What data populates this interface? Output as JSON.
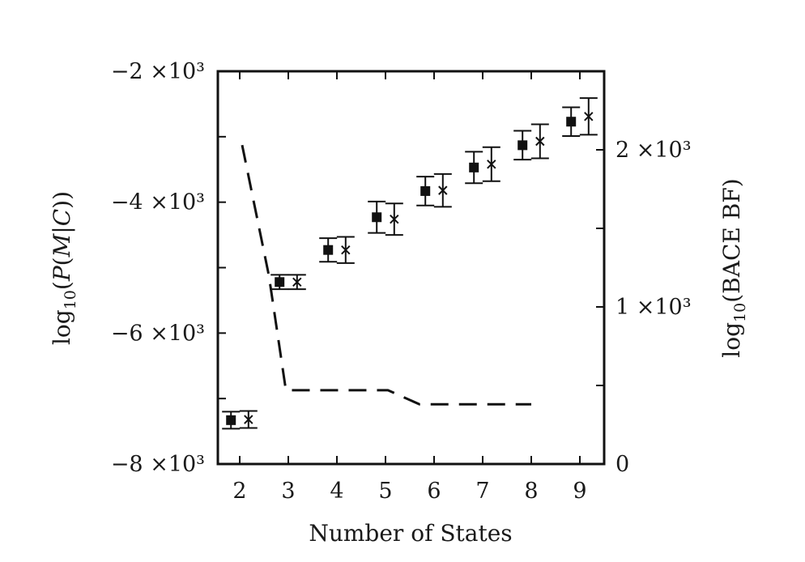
{
  "chart_data": {
    "type": "scatter",
    "xlabel": "Number of States",
    "ylabel_left": "log10(P(M|C))",
    "ylabel_right": "log10(BACE BF)",
    "x_ticks": [
      2,
      3,
      4,
      5,
      6,
      7,
      8,
      9
    ],
    "x_tick_labels": [
      "2",
      "3",
      "4",
      "5",
      "6",
      "7",
      "8",
      "9"
    ],
    "xlim": [
      1.55,
      9.5
    ],
    "ylim_left": [
      -8000,
      -2000
    ],
    "y_ticks_left": [
      -8000,
      -6000,
      -4000,
      -2000
    ],
    "y_tick_labels_left": [
      "−8 ×10³",
      "−6 ×10³",
      "−4 ×10³",
      "−2 ×10³"
    ],
    "ylim_right": [
      0,
      2500
    ],
    "y_ticks_right": [
      0,
      1000,
      2000
    ],
    "y_tick_labels_right": [
      "0",
      "1 ×10³",
      "2 ×10³"
    ],
    "grid": false,
    "series": [
      {
        "marker": "square",
        "axis": "left",
        "x": [
          1.82,
          2.82,
          3.82,
          4.82,
          5.82,
          6.82,
          7.82,
          8.82
        ],
        "y": [
          -7330,
          -5220,
          -4730,
          -4230,
          -3830,
          -3470,
          -3130,
          -2770
        ],
        "error": [
          130,
          110,
          180,
          240,
          220,
          240,
          220,
          220
        ]
      },
      {
        "marker": "x",
        "axis": "left",
        "x": [
          2.18,
          3.18,
          4.18,
          5.18,
          6.18,
          7.18,
          8.18,
          9.18
        ],
        "y": [
          -7320,
          -5220,
          -4730,
          -4260,
          -3820,
          -3420,
          -3070,
          -2690
        ],
        "error": [
          130,
          110,
          200,
          240,
          250,
          260,
          260,
          280
        ]
      },
      {
        "line_style": "dashed",
        "axis": "right",
        "x": [
          2.05,
          2.6,
          2.95,
          3.2,
          5.05,
          5.7,
          8.0
        ],
        "y": [
          2030,
          1200,
          470,
          470,
          470,
          380,
          380
        ]
      }
    ]
  }
}
